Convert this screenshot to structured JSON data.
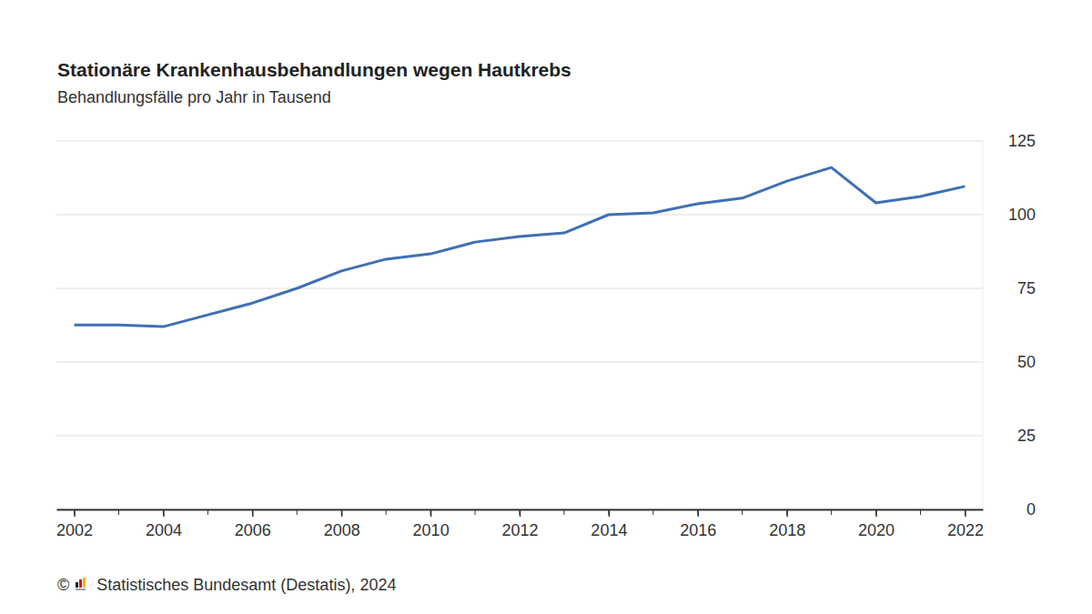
{
  "chart_data": {
    "type": "line",
    "title": "Stationäre Krankenhausbehandlungen wegen Hautkrebs",
    "subtitle": "Behandlungsfälle pro Jahr in Tausend",
    "source": "© Statistisches Bundesamt (Destatis), 2024",
    "x": [
      2002,
      2003,
      2004,
      2005,
      2006,
      2007,
      2008,
      2009,
      2010,
      2011,
      2012,
      2013,
      2014,
      2015,
      2016,
      2017,
      2018,
      2019,
      2020,
      2021,
      2022
    ],
    "values": [
      62.6,
      62.6,
      62.0,
      66.0,
      70.0,
      75.0,
      80.9,
      84.9,
      86.7,
      90.7,
      92.6,
      93.8,
      100.0,
      100.6,
      103.7,
      105.6,
      111.4,
      116.0,
      104.0,
      106.2,
      109.6
    ],
    "color": "#3f70b3",
    "xlim": [
      2001.6,
      2022.4
    ],
    "xticks": [
      2002,
      2004,
      2006,
      2008,
      2010,
      2012,
      2014,
      2016,
      2018,
      2020,
      2022
    ],
    "ylim": [
      0,
      125
    ],
    "yticks": [
      0,
      25,
      50,
      75,
      100,
      125
    ],
    "grid": true
  }
}
